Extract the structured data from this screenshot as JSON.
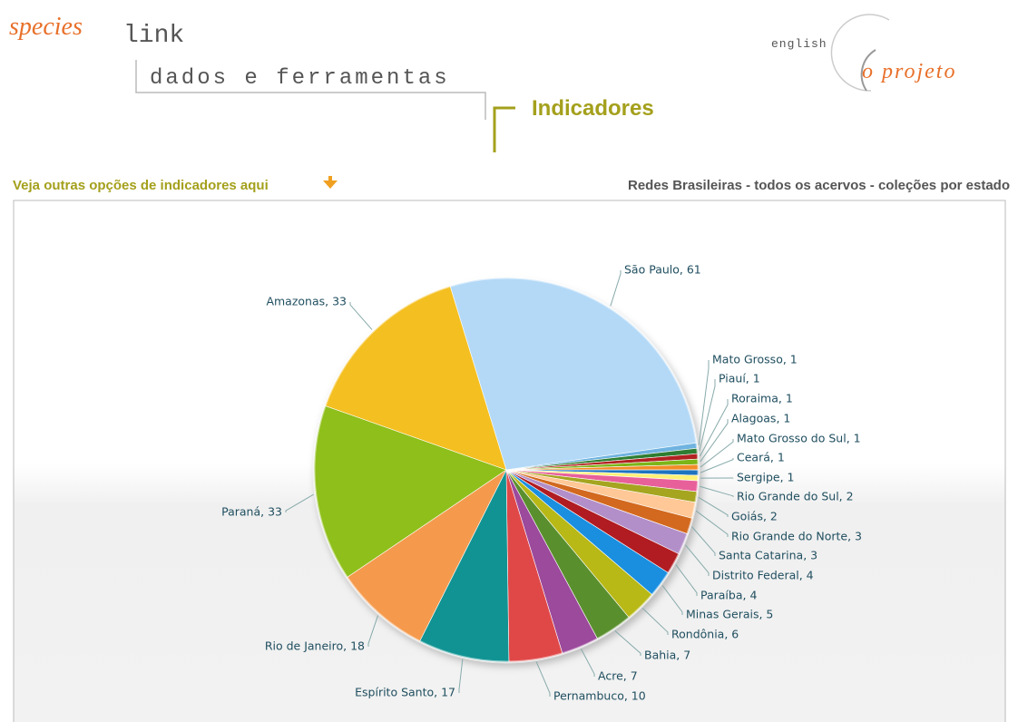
{
  "header": {
    "brand_species": "species",
    "brand_link": "link",
    "nav_tools": "dados e ferramentas",
    "section": "Indicadores",
    "lang": "english",
    "project": "o projeto"
  },
  "toolbar": {
    "options_link": "Veja outras opções de indicadores aqui",
    "chart_caption": "Redes Brasileiras - todos os acervos - coleções por estado"
  },
  "chart_data": {
    "type": "pie",
    "values": [
      61,
      1,
      1,
      1,
      1,
      1,
      1,
      1,
      2,
      2,
      3,
      3,
      4,
      4,
      5,
      6,
      7,
      7,
      10,
      17,
      18,
      33,
      33
    ],
    "value_labels": [
      "São Paulo, 61",
      "Mato Grosso, 1",
      "Piauí, 1",
      "Roraima, 1",
      "Alagoas, 1",
      "Mato Grosso do Sul, 1",
      "Ceará, 1",
      "Sergipe, 1",
      "Rio Grande do Sul, 2",
      "Goiás, 2",
      "Rio Grande do Norte, 3",
      "Santa Catarina, 3",
      "Distrito Federal, 4",
      "Paraíba, 4",
      "Minas Gerais, 5",
      "Rondônia, 6",
      "Bahia, 7",
      "Acre, 7",
      "Pernambuco, 10",
      "Espírito Santo, 17",
      "Rio de Janeiro, 18",
      "Paraná, 33",
      "Amazonas, 33"
    ],
    "colors": [
      "#b3d9f7",
      "#6fb3e0",
      "#2e7d32",
      "#b22222",
      "#7cb518",
      "#f28c28",
      "#1e73be",
      "#fff176",
      "#e8609a",
      "#a5a520",
      "#ffc896",
      "#d2691e",
      "#b38fc9",
      "#b01c22",
      "#1a8fe0",
      "#b8b817",
      "#5a8f2e",
      "#9c4a9c",
      "#e04848",
      "#119393",
      "#f59a4d",
      "#8fbf1a",
      "#f4bf20"
    ]
  }
}
